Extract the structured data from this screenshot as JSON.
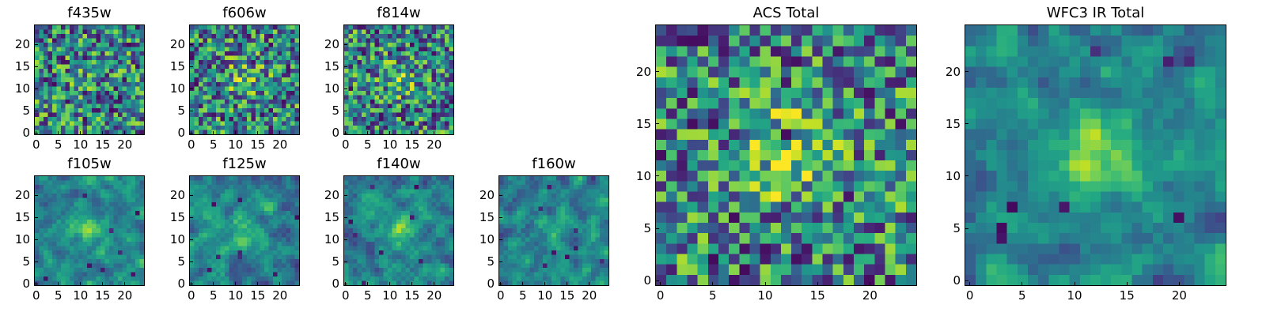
{
  "panels": [
    {
      "key": "f435w",
      "title": "f435w",
      "ticks_x": [
        0,
        5,
        10,
        15,
        20
      ],
      "ticks_y": [
        0,
        5,
        10,
        15,
        20
      ]
    },
    {
      "key": "f606w",
      "title": "f606w",
      "ticks_x": [
        0,
        5,
        10,
        15,
        20
      ],
      "ticks_y": [
        0,
        5,
        10,
        15,
        20
      ]
    },
    {
      "key": "f814w",
      "title": "f814w",
      "ticks_x": [
        0,
        5,
        10,
        15,
        20
      ],
      "ticks_y": [
        0,
        5,
        10,
        15,
        20
      ]
    },
    {
      "key": "f105w",
      "title": "f105w",
      "ticks_x": [
        0,
        5,
        10,
        15,
        20
      ],
      "ticks_y": [
        0,
        5,
        10,
        15,
        20
      ]
    },
    {
      "key": "f125w",
      "title": "f125w",
      "ticks_x": [
        0,
        5,
        10,
        15,
        20
      ],
      "ticks_y": [
        0,
        5,
        10,
        15,
        20
      ]
    },
    {
      "key": "f140w",
      "title": "f140w",
      "ticks_x": [
        0,
        5,
        10,
        15,
        20
      ],
      "ticks_y": [
        0,
        5,
        10,
        15,
        20
      ]
    },
    {
      "key": "f160w",
      "title": "f160w",
      "ticks_x": [
        0,
        5,
        10,
        15,
        20
      ],
      "ticks_y": [
        0,
        5,
        10,
        15,
        20
      ]
    },
    {
      "key": "acs-total",
      "title": "ACS Total",
      "ticks_x": [
        0,
        5,
        10,
        15,
        20
      ],
      "ticks_y": [
        0,
        5,
        10,
        15,
        20
      ]
    },
    {
      "key": "wfc3-ir-total",
      "title": "WFC3 IR Total",
      "ticks_x": [
        0,
        5,
        10,
        15,
        20
      ],
      "ticks_y": [
        0,
        5,
        10,
        15,
        20
      ]
    }
  ],
  "grid_size": 25,
  "colormap": "viridis",
  "colors": {
    "low": "#440154",
    "mid_low": "#31688e",
    "mid": "#21918c",
    "mid_high": "#5dc863",
    "high": "#fde725"
  }
}
